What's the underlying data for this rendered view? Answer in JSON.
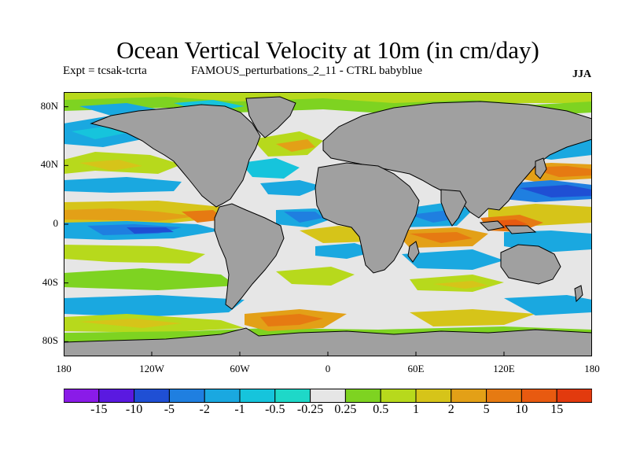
{
  "title": "Ocean Vertical Velocity at 10m (in cm/day)",
  "experiment": "Expt = tcsak-tcrta",
  "subtitle": "FAMOUS_perturbations_2_11 - CTRL babyblue",
  "season": "JJA",
  "axes": {
    "lat_ticks": [
      "80N",
      "40N",
      "0",
      "40S",
      "80S"
    ],
    "lat_values": [
      80,
      40,
      0,
      -40,
      -80
    ],
    "lon_ticks": [
      "180",
      "120W",
      "60W",
      "0",
      "60E",
      "120E",
      "180"
    ],
    "lon_values": [
      -180,
      -120,
      -60,
      0,
      60,
      120,
      180
    ],
    "lat_range": [
      -90,
      90
    ],
    "lon_range": [
      -180,
      180
    ]
  },
  "colorbar": {
    "labels": [
      "-15",
      "-10",
      "-5",
      "-2",
      "-1",
      "-0.5",
      "-0.25",
      "0.25",
      "0.5",
      "1",
      "2",
      "5",
      "10",
      "15"
    ],
    "colors": [
      "#8a1be8",
      "#5a19e0",
      "#1f4fd4",
      "#1f7fe0",
      "#1aa8e0",
      "#16c4dc",
      "#1ed8c8",
      "#e6e6e6",
      "#7ed321",
      "#b7d91c",
      "#d6c419",
      "#e3a017",
      "#e67a12",
      "#e85a10",
      "#e23a0e"
    ]
  },
  "colors": {
    "land": "#a0a0a0",
    "no_change": "#e6e6e6",
    "coastline": "#000000"
  }
}
